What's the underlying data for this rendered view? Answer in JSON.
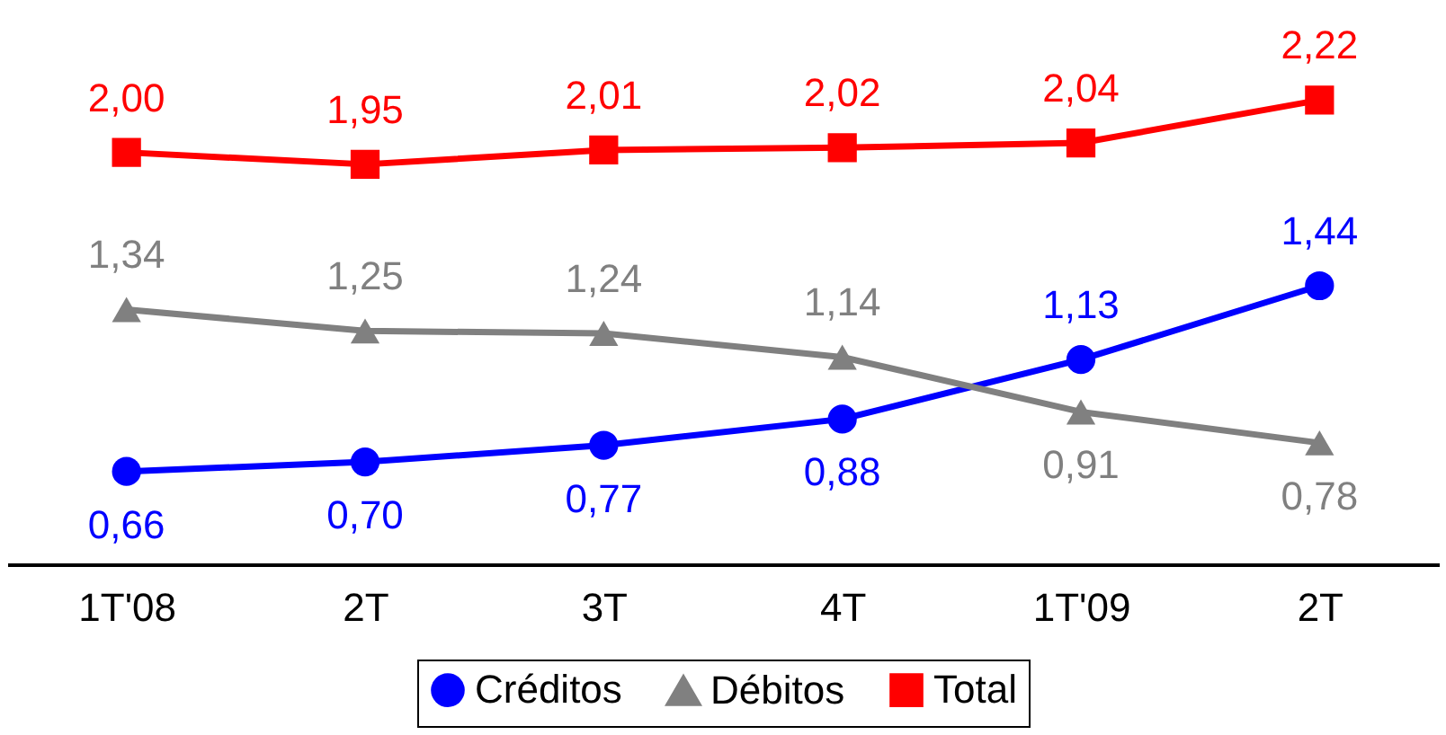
{
  "chart_data": {
    "type": "line",
    "categories": [
      "1T'08",
      "2T",
      "3T",
      "4T",
      "1T'09",
      "2T"
    ],
    "series": [
      {
        "name": "Créditos",
        "color": "#0000ff",
        "marker": "circle",
        "values": [
          0.66,
          0.7,
          0.77,
          0.88,
          1.13,
          1.44
        ],
        "value_labels": [
          "0,66",
          "0,70",
          "0,77",
          "0,88",
          "1,13",
          "1,44"
        ]
      },
      {
        "name": "Débitos",
        "color": "#808080",
        "marker": "triangle",
        "values": [
          1.34,
          1.25,
          1.24,
          1.14,
          0.91,
          0.78
        ],
        "value_labels": [
          "1,34",
          "1,25",
          "1,24",
          "1,14",
          "0,91",
          "0,78"
        ]
      },
      {
        "name": "Total",
        "color": "#ff0000",
        "marker": "square",
        "values": [
          2.0,
          1.95,
          2.01,
          2.02,
          2.04,
          2.22
        ],
        "value_labels": [
          "2,00",
          "1,95",
          "2,01",
          "2,02",
          "2,04",
          "2,22"
        ]
      }
    ],
    "legend": "bottom"
  }
}
